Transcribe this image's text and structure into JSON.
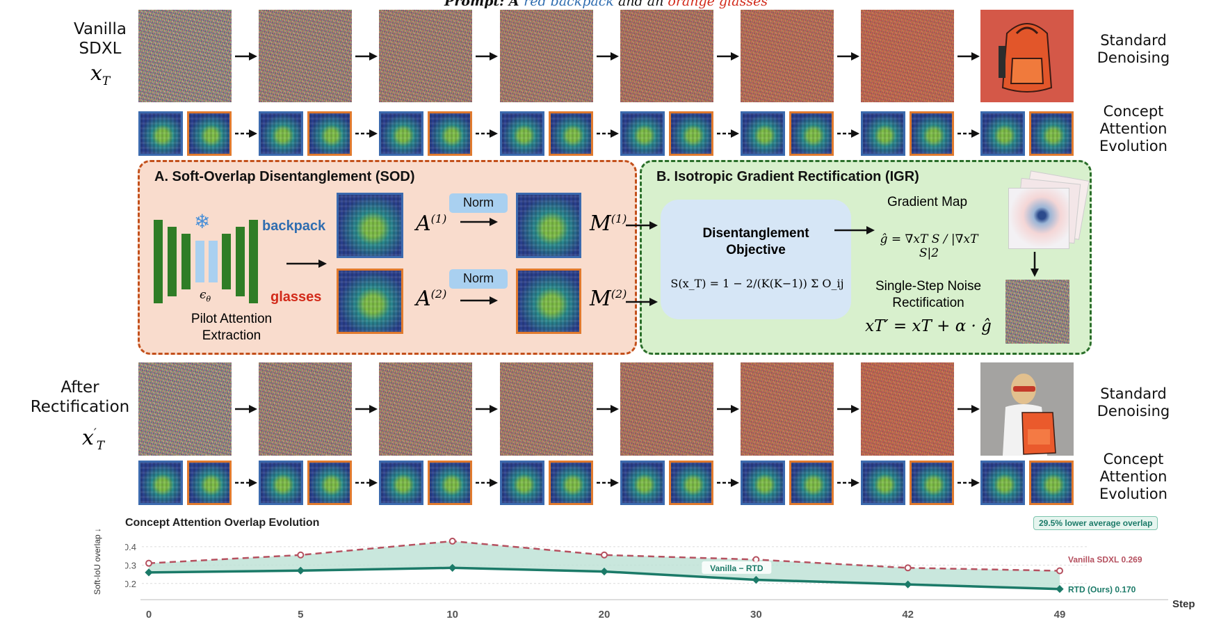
{
  "prompt": {
    "prefix": "Prompt: A ",
    "concept1": "red backpack",
    "middle": " and an ",
    "concept2": "orange glasses"
  },
  "top_row": {
    "label_line1": "Vanilla",
    "label_line2": "SDXL",
    "symbol": "x",
    "symbol_sub": "T",
    "right_label_top": [
      "Standard",
      "Denoising"
    ],
    "right_label_bottom": [
      "Concept",
      "Attention",
      "Evolution"
    ]
  },
  "bottom_row": {
    "label_line1": "After",
    "label_line2": "Rectification",
    "symbol": "x",
    "symbol_sup": "′",
    "symbol_sub": "T",
    "right_label_top": [
      "Standard",
      "Denoising"
    ],
    "right_label_bottom": [
      "Concept",
      "Attention",
      "Evolution"
    ]
  },
  "sod": {
    "title": "A. Soft-Overlap Disentanglement (SOD)",
    "concept1": "backpack",
    "concept2": "glasses",
    "epsilon": "ϵ",
    "epsilon_sub": "θ",
    "caption_line1": "Pilot Attention",
    "caption_line2": "Extraction",
    "a1": "A",
    "a1_sup": "(1)",
    "a2": "A",
    "a2_sup": "(2)",
    "norm1": "Norm",
    "norm2": "Norm",
    "m1": "M",
    "m1_sup": "(1)",
    "m2": "M",
    "m2_sup": "(2)",
    "snowflake": "❄",
    "accent_blue": "#2f6db0",
    "accent_red": "#d22a1a"
  },
  "igr": {
    "title": "B. Isotropic Gradient Rectification (IGR)",
    "objective_line1": "Disentanglement",
    "objective_line2": "Objective",
    "objective_formula": "S(x_T) = 1 − 2/(K(K−1)) Σ O_ij",
    "gradient_map_label": "Gradient Map",
    "gradient_formula": "ĝ = ∇xT S / |∇xT S|2",
    "rect_line1": "Single-Step Noise",
    "rect_line2": "Rectification",
    "rect_formula": "xT′ = xT + α · ĝ"
  },
  "chart_data": {
    "type": "line",
    "title": "Concept Attention Overlap Evolution",
    "ylabel": "Soft-IoU overlap ↓",
    "xlabel": "Step",
    "x": [
      0,
      5,
      10,
      20,
      30,
      42,
      49
    ],
    "x_tick_labels": [
      "0",
      "5",
      "10",
      "20",
      "30",
      "42",
      "49"
    ],
    "y_ticks": [
      0.2,
      0.3,
      0.4
    ],
    "ylim": [
      0.15,
      0.46
    ],
    "series": [
      {
        "name": "Vanilla SDXL",
        "values": [
          0.31,
          0.355,
          0.43,
          0.355,
          0.33,
          0.285,
          0.269
        ],
        "color": "#b5505f",
        "style": "dashed",
        "end_label": "0.269"
      },
      {
        "name": "RTD (Ours)",
        "values": [
          0.26,
          0.27,
          0.285,
          0.265,
          0.22,
          0.195,
          0.17
        ],
        "color": "#1b7a68",
        "style": "solid",
        "end_label": "0.170"
      }
    ],
    "band_label": "Vanilla − RTD",
    "badge": "29.5% lower average overlap",
    "grid": true
  }
}
